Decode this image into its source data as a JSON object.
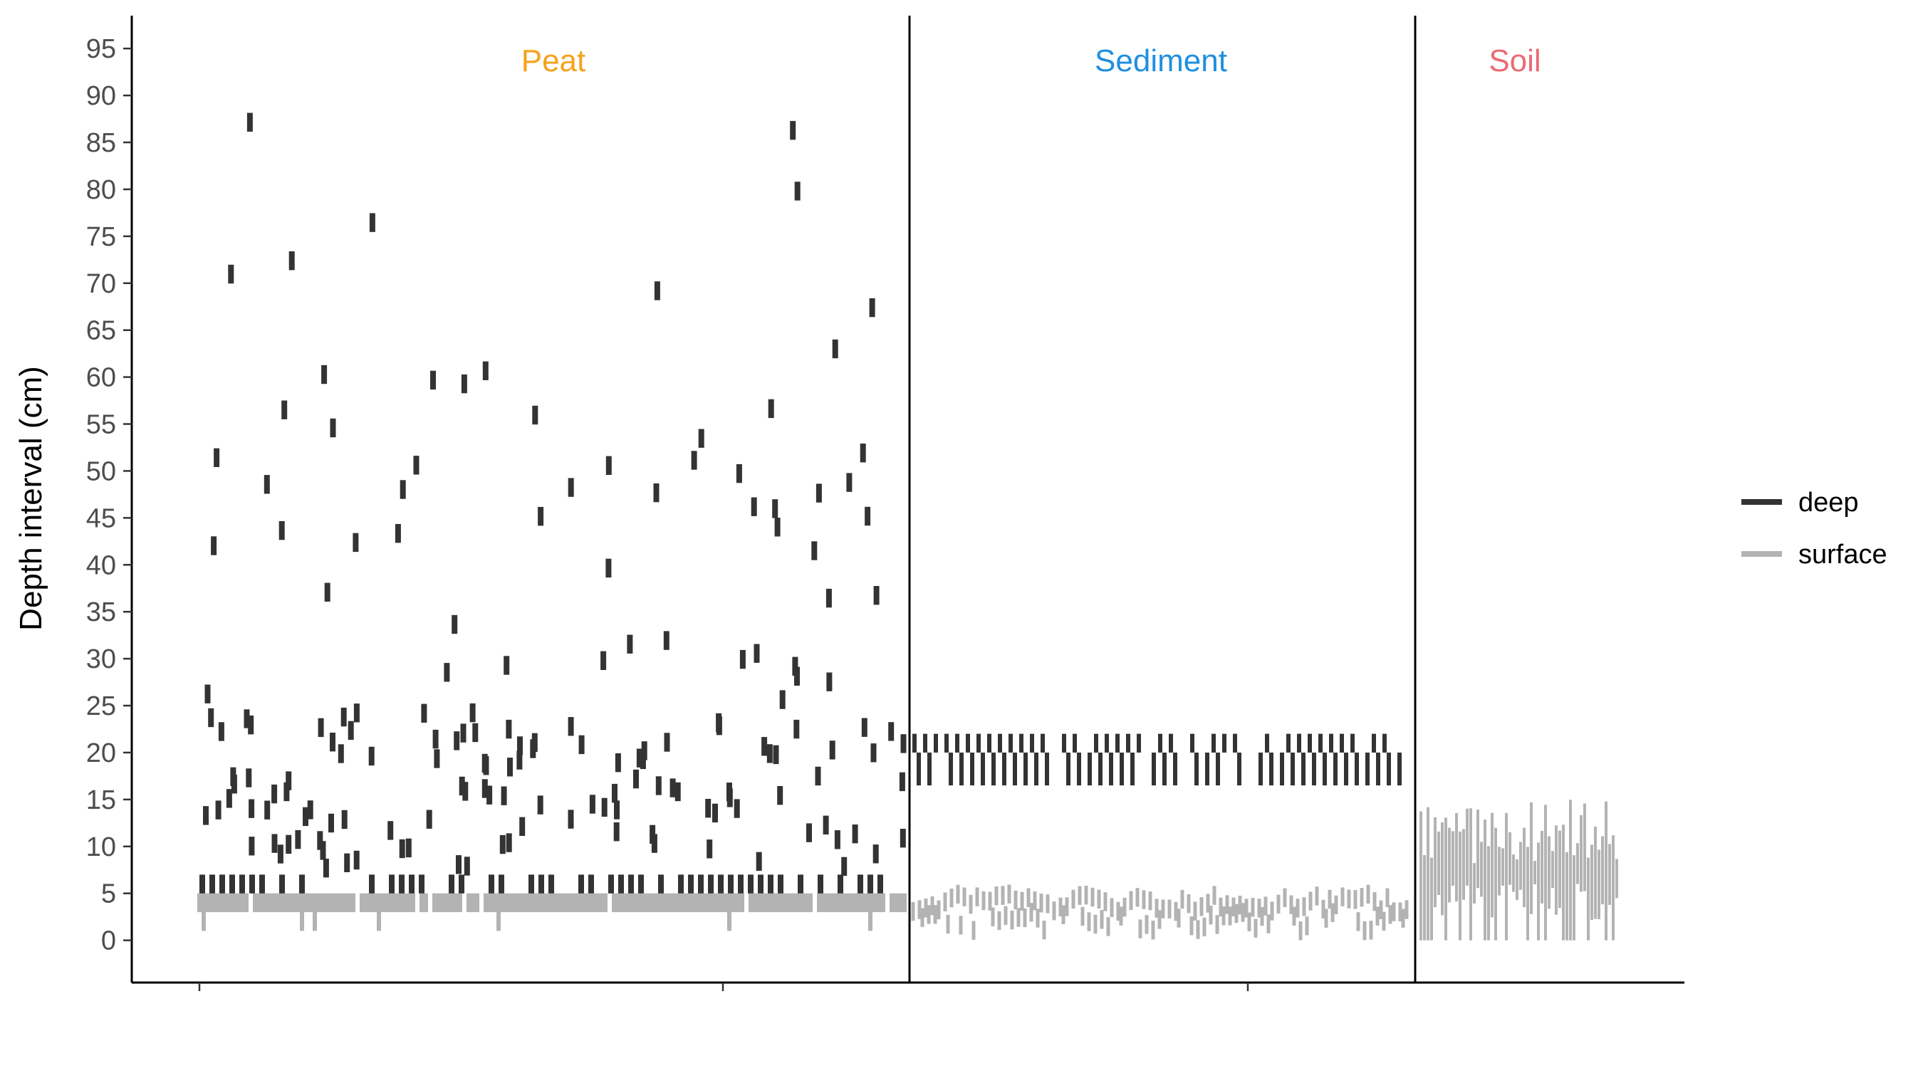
{
  "chart_data": {
    "type": "segment-strip",
    "ylabel": "Depth interval (cm)",
    "ylim": [
      -4.5,
      98.5
    ],
    "y_ticks": [
      0,
      5,
      10,
      15,
      20,
      25,
      30,
      35,
      40,
      45,
      50,
      55,
      60,
      65,
      70,
      75,
      80,
      85,
      90,
      95
    ],
    "x_tick_count": 3,
    "grid": false,
    "legend_position": "right",
    "colors": {
      "deep": "#333333",
      "surface": "#b3b3b3"
    },
    "groups": [
      {
        "label": "Peat",
        "color": "#f5a31a"
      },
      {
        "label": "Sediment",
        "color": "#1f8fe0"
      },
      {
        "label": "Soil",
        "color": "#ea6a74"
      }
    ],
    "legend": [
      {
        "key": "deep",
        "label": "deep"
      },
      {
        "key": "surface",
        "label": "surface"
      }
    ]
  }
}
